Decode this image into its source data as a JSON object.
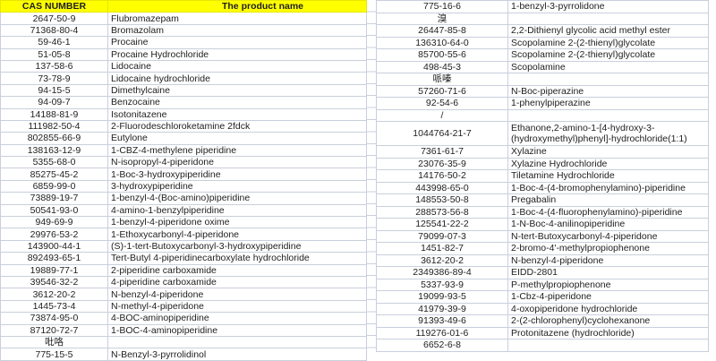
{
  "header": {
    "cas": "CAS NUMBER",
    "name": "The product name"
  },
  "colors": {
    "header_bg": "#ffff00",
    "grid": "#c9cfdc"
  },
  "left_rows": [
    {
      "cas": "2647-50-9",
      "name": "Flubromazepam"
    },
    {
      "cas": "71368-80-4",
      "name": "Bromazolam"
    },
    {
      "cas": "59-46-1",
      "name": "Procaine"
    },
    {
      "cas": "51-05-8",
      "name": "Procaine Hydrochloride"
    },
    {
      "cas": "137-58-6",
      "name": "Lidocaine"
    },
    {
      "cas": "73-78-9",
      "name": "Lidocaine hydrochloride"
    },
    {
      "cas": "94-15-5",
      "name": "Dimethylcaine"
    },
    {
      "cas": "94-09-7",
      "name": "Benzocaine"
    },
    {
      "cas": "14188-81-9",
      "name": "Isotonitazene"
    },
    {
      "cas": "111982-50-4",
      "name": "2-Fluorodeschloroketamine  2fdck"
    },
    {
      "cas": "802855-66-9",
      "name": "Eutylone"
    },
    {
      "cas": "138163-12-9",
      "name": "1-CBZ-4-methylene piperidine"
    },
    {
      "cas": "5355-68-0",
      "name": "N-isopropyl-4-piperidone"
    },
    {
      "cas": "85275-45-2",
      "name": "1-Boc-3-hydroxypiperidine"
    },
    {
      "cas": "6859-99-0",
      "name": "3-hydroxypiperidine"
    },
    {
      "cas": "73889-19-7",
      "name": "1-benzyl-4-(Boc-amino)piperidine"
    },
    {
      "cas": "50541-93-0",
      "name": "4-amino-1-benzylpiperidine"
    },
    {
      "cas": "949-69-9",
      "name": "1-benzyl-4-piperidone oxime"
    },
    {
      "cas": "29976-53-2",
      "name": "1-Ethoxycarbonyl-4-piperidone"
    },
    {
      "cas": "143900-44-1",
      "name": "(S)-1-tert-Butoxycarbonyl-3-hydroxypiperidine"
    },
    {
      "cas": "892493-65-1",
      "name": "Tert-Butyl 4-piperidinecarboxylate hydrochloride"
    },
    {
      "cas": "19889-77-1",
      "name": "2-piperidine carboxamide"
    },
    {
      "cas": "39546-32-2",
      "name": "4-piperidine carboxamide"
    },
    {
      "cas": "3612-20-2",
      "name": "N-benzyl-4-piperidone"
    },
    {
      "cas": "1445-73-4",
      "name": "N-methyl-4-piperidone"
    },
    {
      "cas": "73874-95-0",
      "name": "4-BOC-aminopiperidine"
    },
    {
      "cas": "87120-72-7",
      "name": "1-BOC-4-aminopiperidine"
    },
    {
      "cas": "吡咯",
      "name": ""
    },
    {
      "cas": "775-15-5",
      "name": "N-Benzyl-3-pyrrolidinol"
    }
  ],
  "right_rows": [
    {
      "cas": "775-16-6",
      "name": "1-benzyl-3-pyrrolidone"
    },
    {
      "cas": "溴",
      "name": ""
    },
    {
      "cas": "26447-85-8",
      "name": "2,2-Dithienyl glycolic acid methyl ester"
    },
    {
      "cas": "136310-64-0",
      "name": "Scopolamine 2-(2-thienyl)glycolate"
    },
    {
      "cas": "85700-55-6",
      "name": "Scopolamine 2-(2-thienyl)glycolate"
    },
    {
      "cas": "498-45-3",
      "name": "Scopolamine"
    },
    {
      "cas": "哌嗪",
      "name": ""
    },
    {
      "cas": "57260-71-6",
      "name": "N-Boc-piperazine"
    },
    {
      "cas": "92-54-6",
      "name": "1-phenylpiperazine"
    },
    {
      "cas": "/",
      "name": ""
    },
    {
      "cas": "1044764-21-7",
      "name": "Ethanone,2-amino-1-[4-hydroxy-3-(hydroxymethyl)phenyl]-hydrochloride(1:1)"
    },
    {
      "cas": "7361-61-7",
      "name": "Xylazine"
    },
    {
      "cas": "23076-35-9",
      "name": "Xylazine Hydrochloride"
    },
    {
      "cas": "14176-50-2",
      "name": "Tiletamine Hydrochloride"
    },
    {
      "cas": "443998-65-0",
      "name": "1-Boc-4-(4-bromophenylamino)-piperidine"
    },
    {
      "cas": "148553-50-8",
      "name": "Pregabalin"
    },
    {
      "cas": "288573-56-8",
      "name": "1-Boc-4-(4-fluorophenylamino)-piperidine"
    },
    {
      "cas": "125541-22-2",
      "name": "1-N-Boc-4-anilinopiperidine"
    },
    {
      "cas": "79099-07-3",
      "name": "N-tert-Butoxycarbonyl-4-piperidone"
    },
    {
      "cas": "1451-82-7",
      "name": "2-bromo-4'-methylpropiophenone"
    },
    {
      "cas": "3612-20-2",
      "name": "N-benzyl-4-piperidone"
    },
    {
      "cas": "2349386-89-4",
      "name": "EIDD-2801"
    },
    {
      "cas": "5337-93-9",
      "name": "P-methylpropiophenone"
    },
    {
      "cas": "19099-93-5",
      "name": "1-Cbz-4-piperidone"
    },
    {
      "cas": "41979-39-9",
      "name": "4-oxopiperidone hydrochloride"
    },
    {
      "cas": "91393-49-6",
      "name": "2-(2-chlorophenyl)cyclohexanone"
    },
    {
      "cas": "119276-01-6",
      "name": "Protonitazene (hydrochloride)"
    },
    {
      "cas": "6652-6-8",
      "name": ""
    }
  ]
}
